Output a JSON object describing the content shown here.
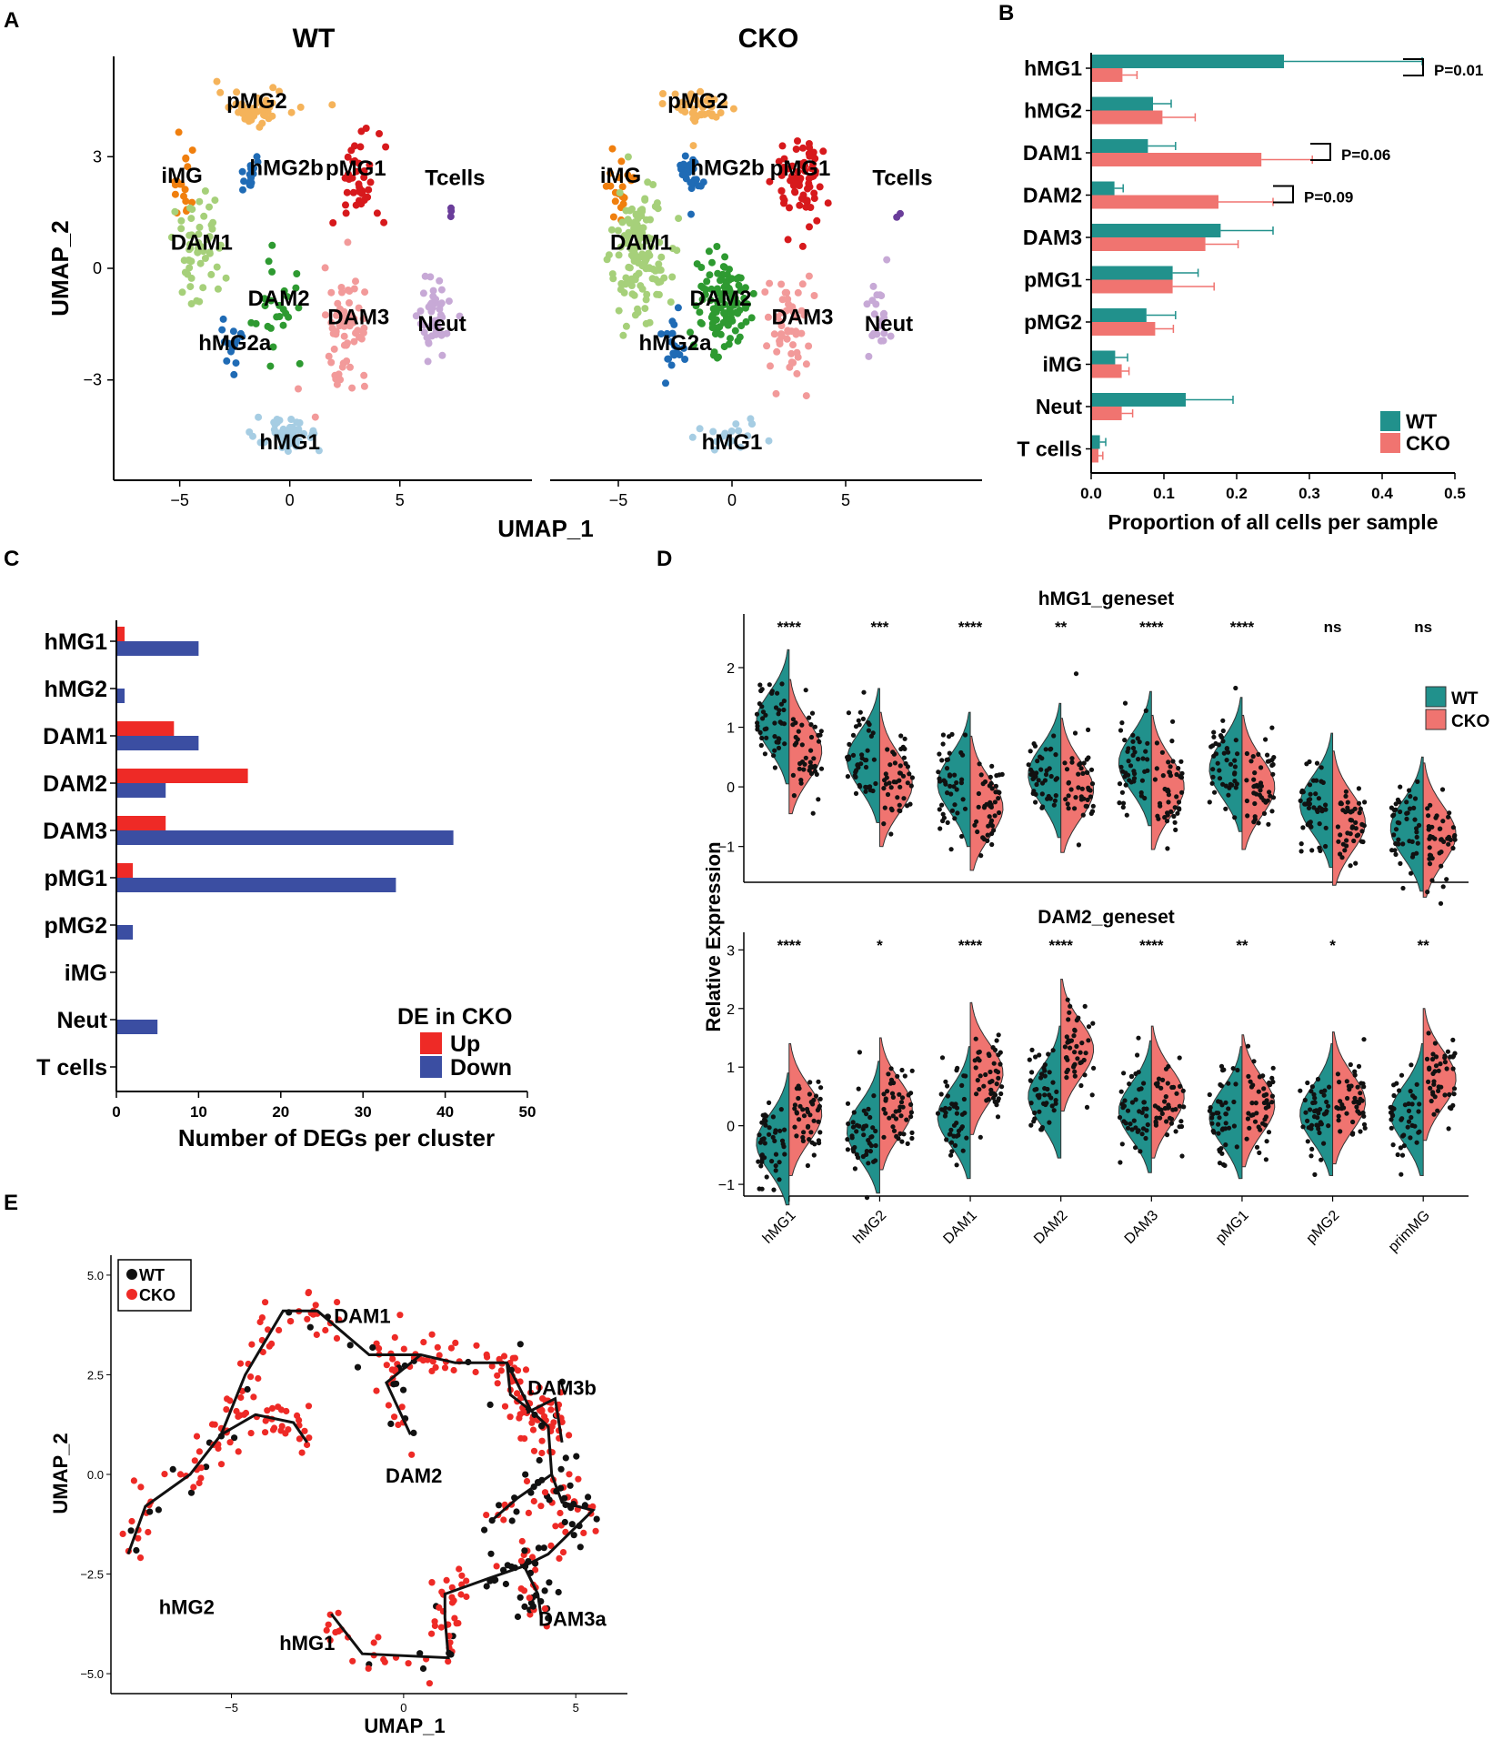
{
  "panel_labels": {
    "A": "A",
    "B": "B",
    "C": "C",
    "D": "D",
    "E": "E"
  },
  "colors": {
    "WT": "#21918c",
    "CKO": "#f07470",
    "up": "#ee2a26",
    "down": "#3b4ea2",
    "pMG2": "#f5b35a",
    "pMG1": "#d7191c",
    "iMG": "#f07f0e",
    "hMG2b": "#1f6bb5",
    "hMG2a": "#1f6bb5",
    "DAM1": "#a6d07a",
    "DAM2": "#2e9a31",
    "DAM3": "#f29a9a",
    "hMG1": "#a6cde3",
    "Neut": "#c7a9d6",
    "Tcells": "#6a3d9a"
  },
  "chart_data": [
    {
      "id": "A",
      "type": "scatter",
      "panels": [
        "WT",
        "CKO"
      ],
      "xlabel": "UMAP_1",
      "ylabel": "UMAP_2",
      "xticks": [
        "−5",
        "0",
        "5",
        "−5",
        "0",
        "5"
      ],
      "yticks": [
        "3",
        "0",
        "−3"
      ],
      "xlim": [
        -8,
        11
      ],
      "ylim": [
        -5.5,
        5.5
      ],
      "cluster_labels": [
        "pMG2",
        "iMG",
        "hMG2b",
        "pMG1",
        "Tcells",
        "DAM1",
        "DAM2",
        "DAM3",
        "hMG2a",
        "Neut",
        "hMG1"
      ],
      "clusters": [
        {
          "name": "pMG2",
          "center": [
            -1.5,
            4.3
          ]
        },
        {
          "name": "iMG",
          "center": [
            -4.9,
            2.2
          ]
        },
        {
          "name": "hMG2b",
          "center": [
            -1.8,
            2.5
          ]
        },
        {
          "name": "pMG1",
          "center": [
            3.0,
            2.3
          ]
        },
        {
          "name": "Tcells",
          "center": [
            7.3,
            1.5
          ]
        },
        {
          "name": "DAM1",
          "center": [
            -4.0,
            0.5
          ]
        },
        {
          "name": "DAM2",
          "center": [
            -0.5,
            -1.0
          ]
        },
        {
          "name": "DAM3",
          "center": [
            2.5,
            -1.5
          ]
        },
        {
          "name": "hMG2a",
          "center": [
            -2.5,
            -2.2
          ]
        },
        {
          "name": "Neut",
          "center": [
            6.5,
            -1.2
          ]
        },
        {
          "name": "hMG1",
          "center": [
            0.0,
            -4.5
          ]
        }
      ]
    },
    {
      "id": "B",
      "type": "bar",
      "orientation": "horizontal",
      "categories": [
        "hMG1",
        "hMG2",
        "DAM1",
        "DAM2",
        "DAM3",
        "pMG1",
        "pMG2",
        "iMG",
        "Neut",
        "T cells"
      ],
      "series": [
        {
          "name": "WT",
          "values": [
            0.265,
            0.085,
            0.078,
            0.032,
            0.178,
            0.112,
            0.076,
            0.033,
            0.13,
            0.012
          ],
          "errors": [
            0.19,
            0.025,
            0.038,
            0.012,
            0.072,
            0.035,
            0.04,
            0.017,
            0.065,
            0.008
          ]
        },
        {
          "name": "CKO",
          "values": [
            0.043,
            0.098,
            0.234,
            0.175,
            0.157,
            0.112,
            0.088,
            0.042,
            0.042,
            0.01
          ],
          "errors": [
            0.02,
            0.045,
            0.07,
            0.075,
            0.045,
            0.057,
            0.025,
            0.01,
            0.015,
            0.006
          ]
        }
      ],
      "xlabel": "Proportion of all cells per sample",
      "xticks": [
        "0.0",
        "0.1",
        "0.2",
        "0.3",
        "0.4",
        "0.5"
      ],
      "xlim": [
        0,
        0.5
      ],
      "annotations": [
        {
          "category": "hMG1",
          "text": "P=0.01"
        },
        {
          "category": "DAM1",
          "text": "P=0.06"
        },
        {
          "category": "DAM2",
          "text": "P=0.09"
        }
      ],
      "legend": [
        "WT",
        "CKO"
      ]
    },
    {
      "id": "C",
      "type": "bar",
      "orientation": "horizontal",
      "categories": [
        "hMG1",
        "hMG2",
        "DAM1",
        "DAM2",
        "DAM3",
        "pMG1",
        "pMG2",
        "iMG",
        "Neut",
        "T cells"
      ],
      "series": [
        {
          "name": "Up",
          "values": [
            1,
            0,
            7,
            16,
            6,
            2,
            0,
            0,
            0,
            0
          ]
        },
        {
          "name": "Down",
          "values": [
            10,
            1,
            10,
            6,
            41,
            34,
            2,
            0,
            5,
            0
          ]
        }
      ],
      "xlabel": "Number of DEGs per cluster",
      "xticks": [
        "0",
        "10",
        "20",
        "30",
        "40",
        "50"
      ],
      "xlim": [
        0,
        50
      ],
      "legend_title": "DE in CKO",
      "legend": [
        "Up",
        "Down"
      ]
    },
    {
      "id": "D",
      "type": "split-violin",
      "ylabel": "Relative Expression",
      "categories": [
        "hMG1",
        "hMG2",
        "DAM1",
        "DAM2",
        "DAM3",
        "pMG1",
        "pMG2",
        "primMG"
      ],
      "legend": [
        "WT",
        "CKO"
      ],
      "subplots": [
        {
          "title": "hMG1_geneset",
          "yticks": [
            "2",
            "1",
            "0",
            "−1"
          ],
          "ylim": [
            -1.6,
            2.9
          ],
          "significance": [
            "****",
            "***",
            "****",
            "**",
            "****",
            "****",
            "ns",
            "ns"
          ],
          "wt_median": [
            1.1,
            0.45,
            0.05,
            0.2,
            0.4,
            0.3,
            -0.3,
            -0.7
          ],
          "cko_median": [
            0.6,
            0.05,
            -0.35,
            -0.05,
            0.0,
            0.0,
            -0.6,
            -0.8
          ]
        },
        {
          "title": "DAM2_geneset",
          "yticks": [
            "3",
            "2",
            "1",
            "0",
            "−1"
          ],
          "ylim": [
            -1.2,
            3.3
          ],
          "significance": [
            "****",
            "*",
            "****",
            "****",
            "****",
            "**",
            "*",
            "**"
          ],
          "wt_median": [
            -0.3,
            -0.1,
            0.15,
            0.5,
            0.25,
            0.15,
            0.2,
            0.2
          ],
          "cko_median": [
            0.2,
            0.3,
            0.9,
            1.3,
            0.5,
            0.35,
            0.4,
            0.8
          ]
        }
      ]
    },
    {
      "id": "E",
      "type": "scatter",
      "xlabel": "UMAP_1",
      "ylabel": "UMAP_2",
      "xticks": [
        "−5",
        "0",
        "5"
      ],
      "yticks": [
        "5.0",
        "2.5",
        "0.0",
        "−2.5",
        "−5.0"
      ],
      "xlim": [
        -8.5,
        6.5
      ],
      "ylim": [
        -5.5,
        5.5
      ],
      "legend": [
        "WT",
        "CKO"
      ],
      "cluster_labels": [
        "DAM1",
        "DAM3b",
        "DAM2",
        "hMG2",
        "DAM3a",
        "hMG1"
      ],
      "trajectory": [
        [
          -8,
          -2
        ],
        [
          -7.5,
          -0.8
        ],
        [
          -6.2,
          0
        ],
        [
          -5.3,
          1
        ],
        [
          -4.6,
          2.5
        ],
        [
          -3.5,
          4.1
        ],
        [
          -2.5,
          4.1
        ],
        [
          -1,
          3
        ],
        [
          0.5,
          3
        ],
        [
          1.5,
          2.8
        ],
        [
          3,
          2.8
        ],
        [
          3.7,
          1.6
        ],
        [
          4.2,
          1.2
        ],
        [
          4.3,
          0
        ],
        [
          4.6,
          -0.7
        ],
        [
          5.5,
          -0.9
        ],
        [
          4.2,
          -2
        ],
        [
          3.5,
          -2.3
        ],
        [
          2.5,
          -2.6
        ],
        [
          1.2,
          -3
        ],
        [
          1.2,
          -3.6
        ],
        [
          1.3,
          -4.6
        ],
        [
          -1.2,
          -4.5
        ],
        [
          -2.1,
          -3.5
        ]
      ],
      "branches": [
        [
          [
            -5.3,
            1
          ],
          [
            -4.3,
            1.5
          ],
          [
            -3.2,
            1.3
          ],
          [
            -2.8,
            0.8
          ]
        ],
        [
          [
            0.5,
            3
          ],
          [
            -0.5,
            2.3
          ],
          [
            0.2,
            1
          ]
        ],
        [
          [
            3,
            2.8
          ],
          [
            3.1,
            2
          ],
          [
            3.7,
            1.6
          ]
        ],
        [
          [
            3.7,
            1.6
          ],
          [
            4.4,
            1.9
          ],
          [
            4.6,
            0.8
          ]
        ],
        [
          [
            4.3,
            0
          ],
          [
            3.3,
            -0.6
          ],
          [
            2.5,
            -1.2
          ]
        ],
        [
          [
            3.5,
            -2.3
          ],
          [
            3.9,
            -3.0
          ],
          [
            4.0,
            -3.6
          ]
        ]
      ]
    }
  ]
}
